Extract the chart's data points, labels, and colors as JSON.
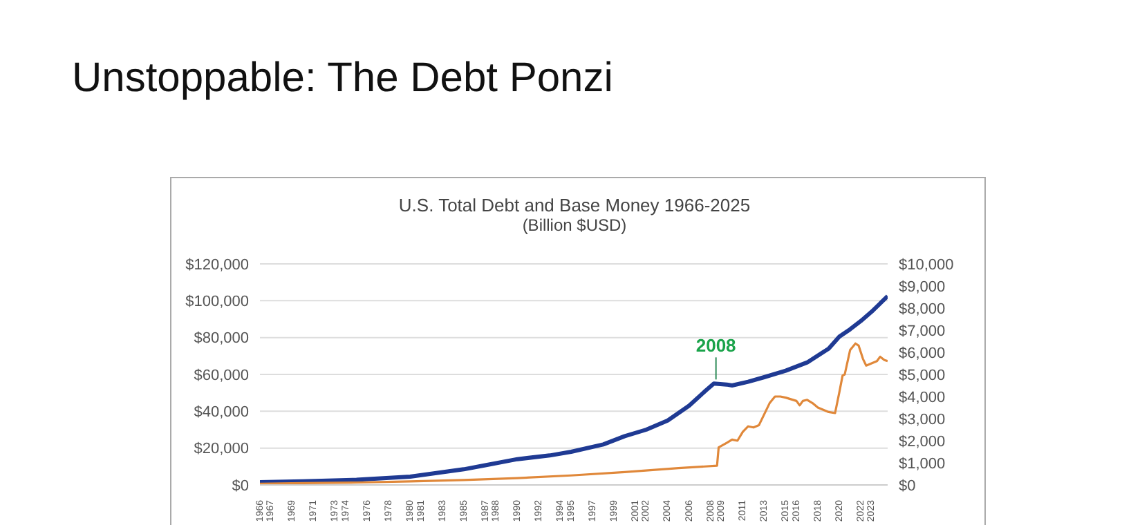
{
  "chart_data": {
    "type": "line",
    "title": "U.S. Total Debt and Base Money 1966-2025",
    "subtitle": "(Billion $USD)",
    "annotations": [
      "Unstoppable: The Debt Ponzi",
      {
        "text": "2008",
        "x": 2008.5,
        "y": 55000
      }
    ],
    "series": [
      {
        "color": "#1f3a93",
        "x": [
          1966,
          1970,
          1975,
          1980,
          1985,
          1987,
          1990,
          1993,
          1995,
          1998,
          2000,
          2002,
          2004,
          2006,
          2007.5,
          2008.3,
          2009.5,
          2010,
          2011.5,
          2013,
          2015,
          2017,
          2019,
          2020,
          2021,
          2022,
          2023,
          2024.5
        ],
        "values": [
          1500,
          2000,
          2800,
          4500,
          8500,
          10700,
          14000,
          16000,
          18000,
          22000,
          26500,
          30000,
          35000,
          43000,
          51000,
          55000,
          54500,
          54000,
          56000,
          58500,
          62000,
          66500,
          74000,
          80500,
          84500,
          89000,
          94000,
          102500
        ]
      },
      {
        "color": "#e0883a",
        "axis": "y2",
        "x": [
          1966,
          1970,
          1975,
          1980,
          1985,
          1990,
          1995,
          2000,
          2005,
          2008.6,
          2008.75,
          2009.5,
          2010,
          2010.5,
          2011,
          2011.5,
          2012,
          2012.5,
          2013,
          2013.5,
          2014,
          2014.5,
          2015,
          2016,
          2016.3,
          2016.6,
          2017,
          2017.5,
          2018,
          2019,
          2019.6,
          2020,
          2020.3,
          2020.5,
          2021,
          2021.5,
          2021.8,
          2022.2,
          2022.5,
          2023,
          2023.5,
          2023.8,
          2024.2,
          2024.5
        ],
        "values": [
          50,
          80,
          110,
          160,
          220,
          310,
          430,
          580,
          760,
          870,
          1700,
          1900,
          2050,
          2000,
          2400,
          2650,
          2600,
          2700,
          3200,
          3700,
          4000,
          4000,
          3950,
          3800,
          3600,
          3800,
          3850,
          3700,
          3500,
          3300,
          3250,
          4200,
          4950,
          5000,
          6100,
          6400,
          6300,
          5700,
          5400,
          5500,
          5600,
          5800,
          5650,
          5600
        ]
      }
    ],
    "xlim": [
      1966,
      2024.5
    ],
    "xticks": [
      1966,
      1967,
      1969,
      1971,
      1973,
      1974,
      1976,
      1978,
      1980,
      1981,
      1983,
      1985,
      1987,
      1988,
      1990,
      1992,
      1994,
      1995,
      1997,
      1999,
      2001,
      2002,
      2004,
      2006,
      2008,
      2009,
      2011,
      2013,
      2015,
      2016,
      2018,
      2020,
      2022,
      2023
    ],
    "ylim": [
      0,
      120000
    ],
    "yticks": [
      {
        "value": 0,
        "label": "$0"
      },
      {
        "value": 20000,
        "label": "$20,000"
      },
      {
        "value": 40000,
        "label": "$40,000"
      },
      {
        "value": 60000,
        "label": "$60,000"
      },
      {
        "value": 80000,
        "label": "$80,000"
      },
      {
        "value": 100000,
        "label": "$100,000"
      },
      {
        "value": 120000,
        "label": "$120,000"
      }
    ],
    "y2lim": [
      0,
      10000
    ],
    "y2ticks": [
      {
        "value": 0,
        "label": "$0"
      },
      {
        "value": 1000,
        "label": "$1,000"
      },
      {
        "value": 2000,
        "label": "$2,000"
      },
      {
        "value": 3000,
        "label": "$3,000"
      },
      {
        "value": 4000,
        "label": "$4,000"
      },
      {
        "value": 5000,
        "label": "$5,000"
      },
      {
        "value": 6000,
        "label": "$6,000"
      },
      {
        "value": 7000,
        "label": "$7,000"
      },
      {
        "value": 8000,
        "label": "$8,000"
      },
      {
        "value": 9000,
        "label": "$9,000"
      },
      {
        "value": 10000,
        "label": "$10,000"
      }
    ],
    "grid": "y",
    "legend": false,
    "marker": "none",
    "line_style": "solid"
  }
}
